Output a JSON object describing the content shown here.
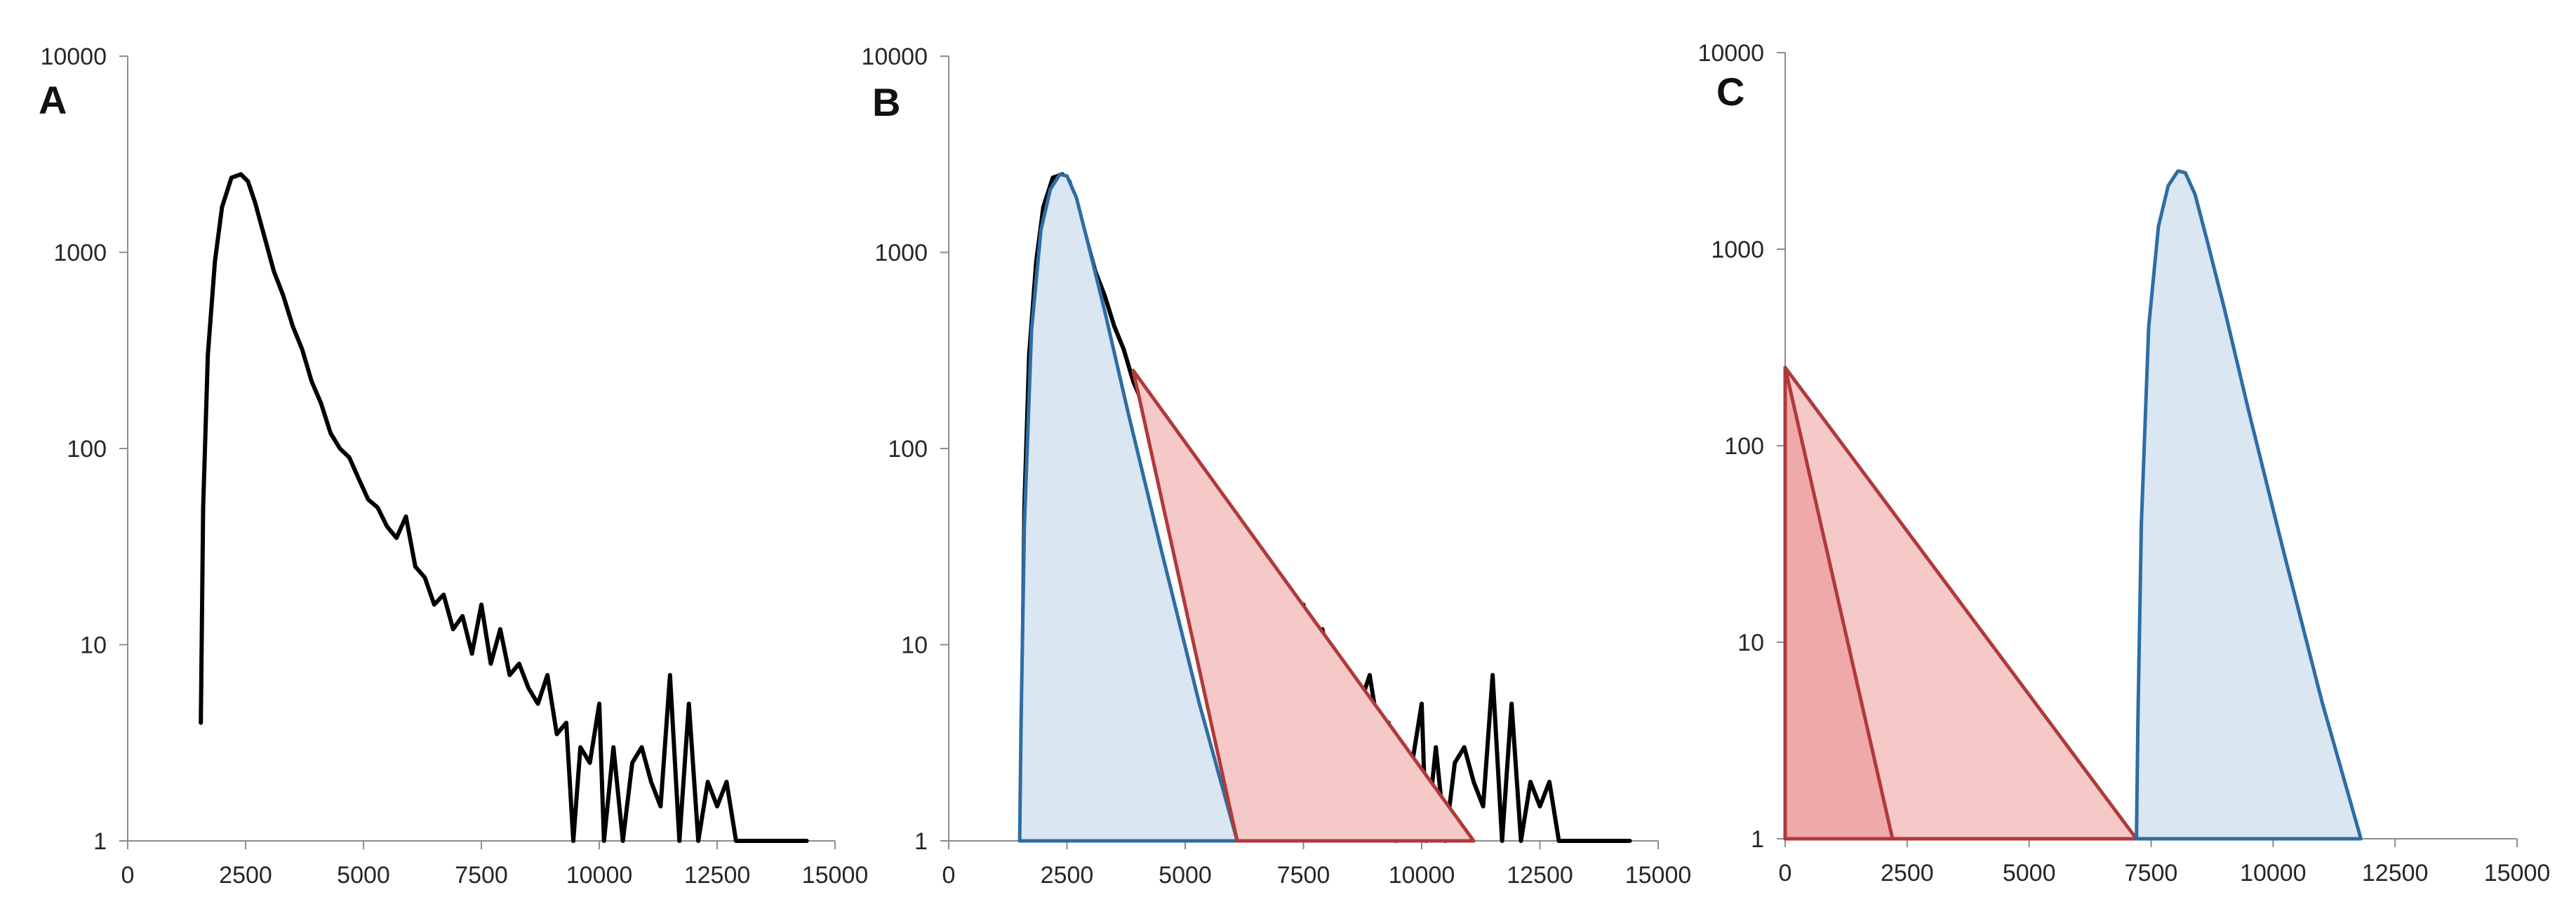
{
  "chart_data": [
    {
      "type": "line",
      "panel_label": "A",
      "y_scale": "log",
      "ylim": [
        1,
        10000
      ],
      "xlim": [
        0,
        15000
      ],
      "y_ticks": [
        "1",
        "10",
        "100",
        "1000",
        "10000"
      ],
      "x_ticks": [
        "0",
        "2500",
        "5000",
        "7500",
        "10000",
        "12500",
        "15000"
      ],
      "grid": false,
      "series": [
        {
          "color": "#000000",
          "x": [
            1550,
            1600,
            1700,
            1850,
            2000,
            2200,
            2400,
            2550,
            2700,
            2900,
            3100,
            3300,
            3500,
            3700,
            3900,
            4100,
            4300,
            4500,
            4700,
            4900,
            5100,
            5300,
            5500,
            5700,
            5900,
            6100,
            6300,
            6500,
            6700,
            6900,
            7100,
            7300,
            7500,
            7700,
            7900,
            8100,
            8300,
            8500,
            8700,
            8900,
            9100,
            9300,
            9450,
            9600,
            9800,
            10000,
            10100,
            10300,
            10500,
            10700,
            10900,
            11100,
            11300,
            11500,
            11700,
            11900,
            12100,
            12300,
            12500,
            12700,
            12900,
            13200,
            13600,
            14000,
            14400
          ],
          "y": [
            4,
            50,
            300,
            900,
            1700,
            2400,
            2500,
            2300,
            1800,
            1200,
            800,
            600,
            420,
            320,
            220,
            170,
            120,
            100,
            90,
            70,
            55,
            50,
            40,
            35,
            45,
            25,
            22,
            16,
            18,
            12,
            14,
            9,
            16,
            8,
            12,
            7,
            8,
            6,
            5,
            7,
            3.5,
            4,
            1,
            3,
            2.5,
            5,
            1,
            3,
            1,
            2.5,
            3,
            2,
            1.5,
            7,
            1,
            5,
            1,
            2,
            1.5,
            2,
            1,
            1,
            1,
            1,
            1
          ]
        }
      ]
    },
    {
      "type": "area",
      "panel_label": "B",
      "y_scale": "log",
      "ylim": [
        1,
        10000
      ],
      "xlim": [
        0,
        15000
      ],
      "y_ticks": [
        "1",
        "10",
        "100",
        "1000",
        "10000"
      ],
      "x_ticks": [
        "0",
        "2500",
        "5000",
        "7500",
        "10000",
        "12500",
        "15000"
      ],
      "grid": false,
      "series": [
        {
          "color": "#000000",
          "x": [
            1550,
            1600,
            1700,
            1850,
            2000,
            2200,
            2400,
            2550,
            2700,
            2900,
            3100,
            3300,
            3500,
            3700,
            3900,
            4100,
            4300,
            4500,
            4700,
            4900,
            5100,
            5300,
            5500,
            5700,
            5900,
            6100,
            6300,
            6500,
            6700,
            6900,
            7100,
            7300,
            7500,
            7700,
            7900,
            8100,
            8300,
            8500,
            8700,
            8900,
            9100,
            9300,
            9450,
            9600,
            9800,
            10000,
            10100,
            10300,
            10500,
            10700,
            10900,
            11100,
            11300,
            11500,
            11700,
            11900,
            12100,
            12300,
            12500,
            12700,
            12900,
            13200,
            13600,
            14000,
            14400
          ],
          "y": [
            4,
            50,
            300,
            900,
            1700,
            2400,
            2500,
            2300,
            1800,
            1200,
            800,
            600,
            420,
            320,
            220,
            170,
            120,
            100,
            90,
            70,
            55,
            50,
            40,
            35,
            45,
            25,
            22,
            16,
            18,
            12,
            14,
            9,
            16,
            8,
            12,
            7,
            8,
            6,
            5,
            7,
            3.5,
            4,
            1,
            3,
            2.5,
            5,
            1,
            3,
            1,
            2.5,
            3,
            2,
            1.5,
            7,
            1,
            5,
            1,
            2,
            1.5,
            2,
            1,
            1,
            1,
            1,
            1
          ]
        },
        {
          "color": "#2e6da4",
          "fill": "#dbe6f3",
          "x": [
            1500,
            1530,
            1600,
            1750,
            1950,
            2150,
            2350,
            2500,
            2700,
            2950,
            3300,
            3800,
            4500,
            5300,
            6100,
            1500
          ],
          "y": [
            1,
            4,
            40,
            400,
            1300,
            2100,
            2500,
            2450,
            1900,
            1100,
            500,
            150,
            30,
            5,
            1,
            1
          ]
        },
        {
          "color": "#b03a3a",
          "fill": "#f6c9c9",
          "x": [
            3900,
            11100,
            6100,
            3900
          ],
          "y": [
            250,
            1,
            1,
            250
          ]
        }
      ]
    },
    {
      "type": "area",
      "panel_label": "C",
      "y_scale": "log",
      "ylim": [
        1,
        10000
      ],
      "xlim": [
        0,
        15000
      ],
      "y_ticks": [
        "1",
        "10",
        "100",
        "1000",
        "10000"
      ],
      "x_ticks": [
        "0",
        "2500",
        "5000",
        "7500",
        "10000",
        "12500",
        "15000"
      ],
      "grid": false,
      "series": [
        {
          "color": "#b03a3a",
          "fill": "#f6c9c9",
          "x": [
            0,
            7200,
            0,
            0
          ],
          "y": [
            250,
            1,
            1,
            250
          ]
        },
        {
          "color": "#b03a3a",
          "fill": "#f0a9a9",
          "x": [
            0,
            2200,
            0,
            0
          ],
          "y": [
            250,
            1,
            1,
            250
          ]
        },
        {
          "color": "#2e6da4",
          "fill": "#dbe6f3",
          "x": [
            7200,
            7230,
            7300,
            7450,
            7650,
            7850,
            8050,
            8200,
            8400,
            8650,
            9000,
            9500,
            10200,
            11000,
            11800,
            7200
          ],
          "y": [
            1,
            4,
            40,
            400,
            1300,
            2100,
            2500,
            2450,
            1900,
            1100,
            500,
            150,
            30,
            5,
            1,
            1
          ]
        }
      ]
    }
  ]
}
